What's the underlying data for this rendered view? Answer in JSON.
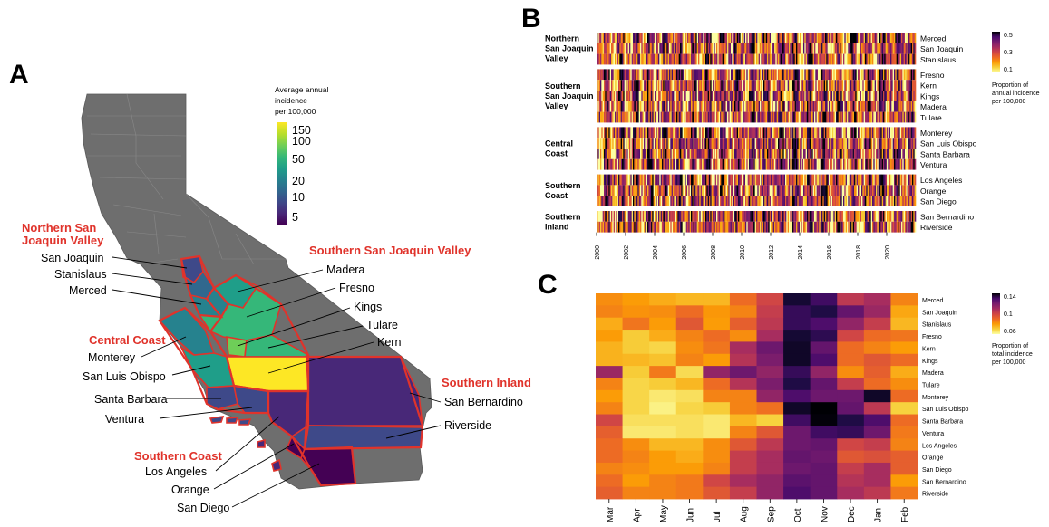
{
  "panels": {
    "a": "A",
    "b": "B",
    "c": "C"
  },
  "colors": {
    "inferno": [
      "#000004",
      "#1b0c41",
      "#4a0c6b",
      "#781c6d",
      "#a52c60",
      "#cf4446",
      "#ed6925",
      "#fb9b06",
      "#f7d13d",
      "#fcffa4"
    ],
    "viridis": [
      "#440154",
      "#482878",
      "#3e4989",
      "#31688e",
      "#26828e",
      "#1f9e89",
      "#35b779",
      "#6ece58",
      "#b5de2b",
      "#fde725"
    ],
    "map_gray": "#6e6e6e",
    "region_outline": "#e0332b",
    "region_title": "#e0332b"
  },
  "map": {
    "legend": {
      "title_lines": [
        "Average annual",
        "incidence",
        "per 100,000"
      ],
      "ticks": [
        "150",
        "100",
        "50",
        "20",
        "10",
        "5"
      ]
    },
    "regions": [
      {
        "lines": [
          "Northern San",
          "Joaquin Valley"
        ]
      },
      {
        "lines": [
          "Southern San Joaquin Valley"
        ]
      },
      {
        "lines": [
          "Central Coast"
        ]
      },
      {
        "lines": [
          "Southern Inland"
        ]
      },
      {
        "lines": [
          "Southern Coast"
        ]
      }
    ],
    "counties": [
      {
        "name": "San Joaquin",
        "incidence": 12
      },
      {
        "name": "Stanislaus",
        "incidence": 15
      },
      {
        "name": "Merced",
        "incidence": 18
      },
      {
        "name": "Madera",
        "incidence": 40
      },
      {
        "name": "Fresno",
        "incidence": 45
      },
      {
        "name": "Kings",
        "incidence": 60
      },
      {
        "name": "Tulare",
        "incidence": 40
      },
      {
        "name": "Kern",
        "incidence": 150
      },
      {
        "name": "Monterey",
        "incidence": 20
      },
      {
        "name": "San Luis Obispo",
        "incidence": 45
      },
      {
        "name": "Santa Barbara",
        "incidence": 10
      },
      {
        "name": "Ventura",
        "incidence": 15
      },
      {
        "name": "San Bernardino",
        "incidence": 5
      },
      {
        "name": "Riverside",
        "incidence": 8
      },
      {
        "name": "Los Angeles",
        "incidence": 5
      },
      {
        "name": "Orange",
        "incidence": 4
      },
      {
        "name": "San Diego",
        "incidence": 4
      }
    ]
  },
  "chart_data": [
    {
      "panel": "B",
      "type": "heatmap",
      "x_tick_labels": [
        "2000",
        "2002",
        "2004",
        "2006",
        "2008",
        "2010",
        "2012",
        "2014",
        "2016",
        "2018",
        "2020"
      ],
      "x_range": [
        2000,
        2022
      ],
      "groups": [
        {
          "lines": [
            "Northern",
            "San Joaquin",
            "Valley"
          ],
          "rows": [
            "Merced",
            "San Joaquin",
            "Stanislaus"
          ]
        },
        {
          "lines": [
            "Southern",
            "San Joaquin",
            "Valley"
          ],
          "rows": [
            "Fresno",
            "Kern",
            "Kings",
            "Madera",
            "Tulare"
          ]
        },
        {
          "lines": [
            "Central",
            "Coast"
          ],
          "rows": [
            "Monterey",
            "San Luis Obispo",
            "Santa Barbara",
            "Ventura"
          ]
        },
        {
          "lines": [
            "Southern",
            "Coast"
          ],
          "rows": [
            "Los Angeles",
            "Orange",
            "San Diego"
          ]
        },
        {
          "lines": [
            "Southern",
            "Inland"
          ],
          "rows": [
            "San Bernardino",
            "Riverside"
          ]
        }
      ],
      "colorbar": {
        "ticks": [
          "0.5",
          "0.3",
          "0.1"
        ],
        "title_lines": [
          "Proportion of",
          "annual incidence",
          "per 100,000"
        ]
      }
    },
    {
      "panel": "C",
      "type": "heatmap",
      "columns": [
        "Mar",
        "Apr",
        "May",
        "Jun",
        "Jul",
        "Aug",
        "Sep",
        "Oct",
        "Nov",
        "Dec",
        "Jan",
        "Feb"
      ],
      "rows": [
        "Merced",
        "San Joaquin",
        "Stanislaus",
        "Fresno",
        "Kern",
        "Kings",
        "Madera",
        "Tulare",
        "Monterey",
        "San Luis Obispo",
        "Santa Barbara",
        "Ventura",
        "Los Angeles",
        "Orange",
        "San Diego",
        "San Bernardino",
        "Riverside"
      ],
      "values": [
        [
          0.078,
          0.075,
          0.072,
          0.07,
          0.07,
          0.085,
          0.095,
          0.138,
          0.128,
          0.1,
          0.105,
          0.08
        ],
        [
          0.08,
          0.077,
          0.078,
          0.085,
          0.076,
          0.08,
          0.098,
          0.13,
          0.135,
          0.12,
          0.108,
          0.073
        ],
        [
          0.072,
          0.083,
          0.075,
          0.09,
          0.075,
          0.088,
          0.1,
          0.13,
          0.125,
          0.11,
          0.098,
          0.07
        ],
        [
          0.075,
          0.066,
          0.072,
          0.08,
          0.085,
          0.078,
          0.105,
          0.138,
          0.132,
          0.095,
          0.085,
          0.083
        ],
        [
          0.071,
          0.066,
          0.064,
          0.078,
          0.083,
          0.105,
          0.118,
          0.14,
          0.12,
          0.085,
          0.08,
          0.075
        ],
        [
          0.071,
          0.07,
          0.068,
          0.08,
          0.075,
          0.102,
          0.115,
          0.14,
          0.125,
          0.085,
          0.09,
          0.085
        ],
        [
          0.108,
          0.066,
          0.082,
          0.063,
          0.11,
          0.118,
          0.11,
          0.13,
          0.11,
          0.078,
          0.088,
          0.072
        ],
        [
          0.08,
          0.064,
          0.066,
          0.07,
          0.085,
          0.102,
          0.115,
          0.135,
          0.12,
          0.098,
          0.085,
          0.078
        ],
        [
          0.075,
          0.064,
          0.06,
          0.062,
          0.08,
          0.08,
          0.11,
          0.125,
          0.118,
          0.118,
          0.14,
          0.085
        ],
        [
          0.08,
          0.064,
          0.058,
          0.064,
          0.066,
          0.08,
          0.084,
          0.14,
          0.146,
          0.12,
          0.1,
          0.065
        ],
        [
          0.095,
          0.062,
          0.062,
          0.062,
          0.06,
          0.07,
          0.065,
          0.128,
          0.145,
          0.135,
          0.125,
          0.085
        ],
        [
          0.088,
          0.06,
          0.06,
          0.062,
          0.06,
          0.08,
          0.09,
          0.118,
          0.128,
          0.13,
          0.118,
          0.082
        ],
        [
          0.085,
          0.078,
          0.07,
          0.07,
          0.078,
          0.09,
          0.1,
          0.118,
          0.12,
          0.095,
          0.098,
          0.08
        ],
        [
          0.085,
          0.08,
          0.075,
          0.072,
          0.078,
          0.098,
          0.105,
          0.12,
          0.118,
          0.09,
          0.092,
          0.088
        ],
        [
          0.08,
          0.078,
          0.075,
          0.075,
          0.08,
          0.098,
          0.105,
          0.118,
          0.12,
          0.098,
          0.105,
          0.088
        ],
        [
          0.085,
          0.075,
          0.08,
          0.082,
          0.095,
          0.105,
          0.11,
          0.122,
          0.12,
          0.102,
          0.105,
          0.075
        ],
        [
          0.088,
          0.08,
          0.08,
          0.082,
          0.09,
          0.098,
          0.11,
          0.125,
          0.12,
          0.105,
          0.1,
          0.082
        ]
      ],
      "colorbar": {
        "ticks": [
          "0.14",
          "0.1",
          "0.06"
        ],
        "title_lines": [
          "Proportion of",
          "total incidence",
          "per 100,000"
        ]
      }
    }
  ]
}
